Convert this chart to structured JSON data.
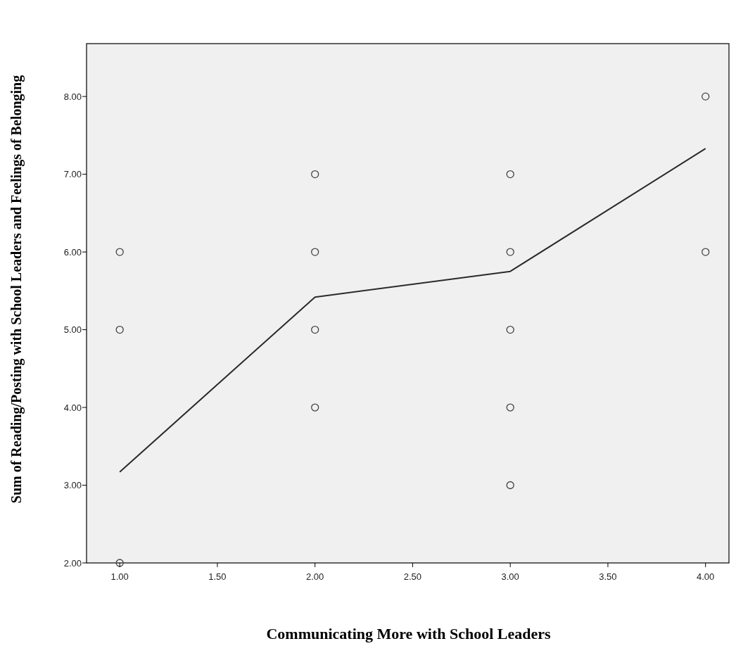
{
  "chart_data": {
    "type": "scatter",
    "xlabel": "Communicating More with School Leaders",
    "ylabel": "Sum of Reading/Posting with School Leaders and Feelings of Belonging",
    "xlim": [
      0.83,
      4.12
    ],
    "xticks": [
      {
        "value": 1,
        "label": "1.00"
      },
      {
        "value": 1.5,
        "label": "1.50"
      },
      {
        "value": 2,
        "label": "2.00"
      },
      {
        "value": 2.5,
        "label": "2.50"
      },
      {
        "value": 3,
        "label": "3.00"
      },
      {
        "value": 3.5,
        "label": "3.50"
      },
      {
        "value": 4,
        "label": "4.00"
      }
    ],
    "ylim": [
      2,
      8.68
    ],
    "yticks": [
      {
        "value": 2,
        "label": "2.00"
      },
      {
        "value": 3,
        "label": "3.00"
      },
      {
        "value": 4,
        "label": "4.00"
      },
      {
        "value": 5,
        "label": "5.00"
      },
      {
        "value": 6,
        "label": "6.00"
      },
      {
        "value": 7,
        "label": "7.00"
      },
      {
        "value": 8,
        "label": "8.00"
      }
    ],
    "grid": false,
    "series": [
      {
        "marker": "circle",
        "color": "#444444",
        "x": [
          1,
          1,
          1,
          2,
          2,
          2,
          2,
          3,
          3,
          3,
          3,
          3,
          4,
          4
        ],
        "values": [
          6,
          5,
          2,
          7,
          6,
          5,
          4,
          7,
          6,
          5,
          4,
          3,
          8,
          6
        ]
      },
      {
        "type": "line",
        "color": "#2a2a2a",
        "x": [
          1,
          2,
          3,
          4
        ],
        "values": [
          3.17,
          5.42,
          5.75,
          7.33
        ]
      }
    ]
  }
}
